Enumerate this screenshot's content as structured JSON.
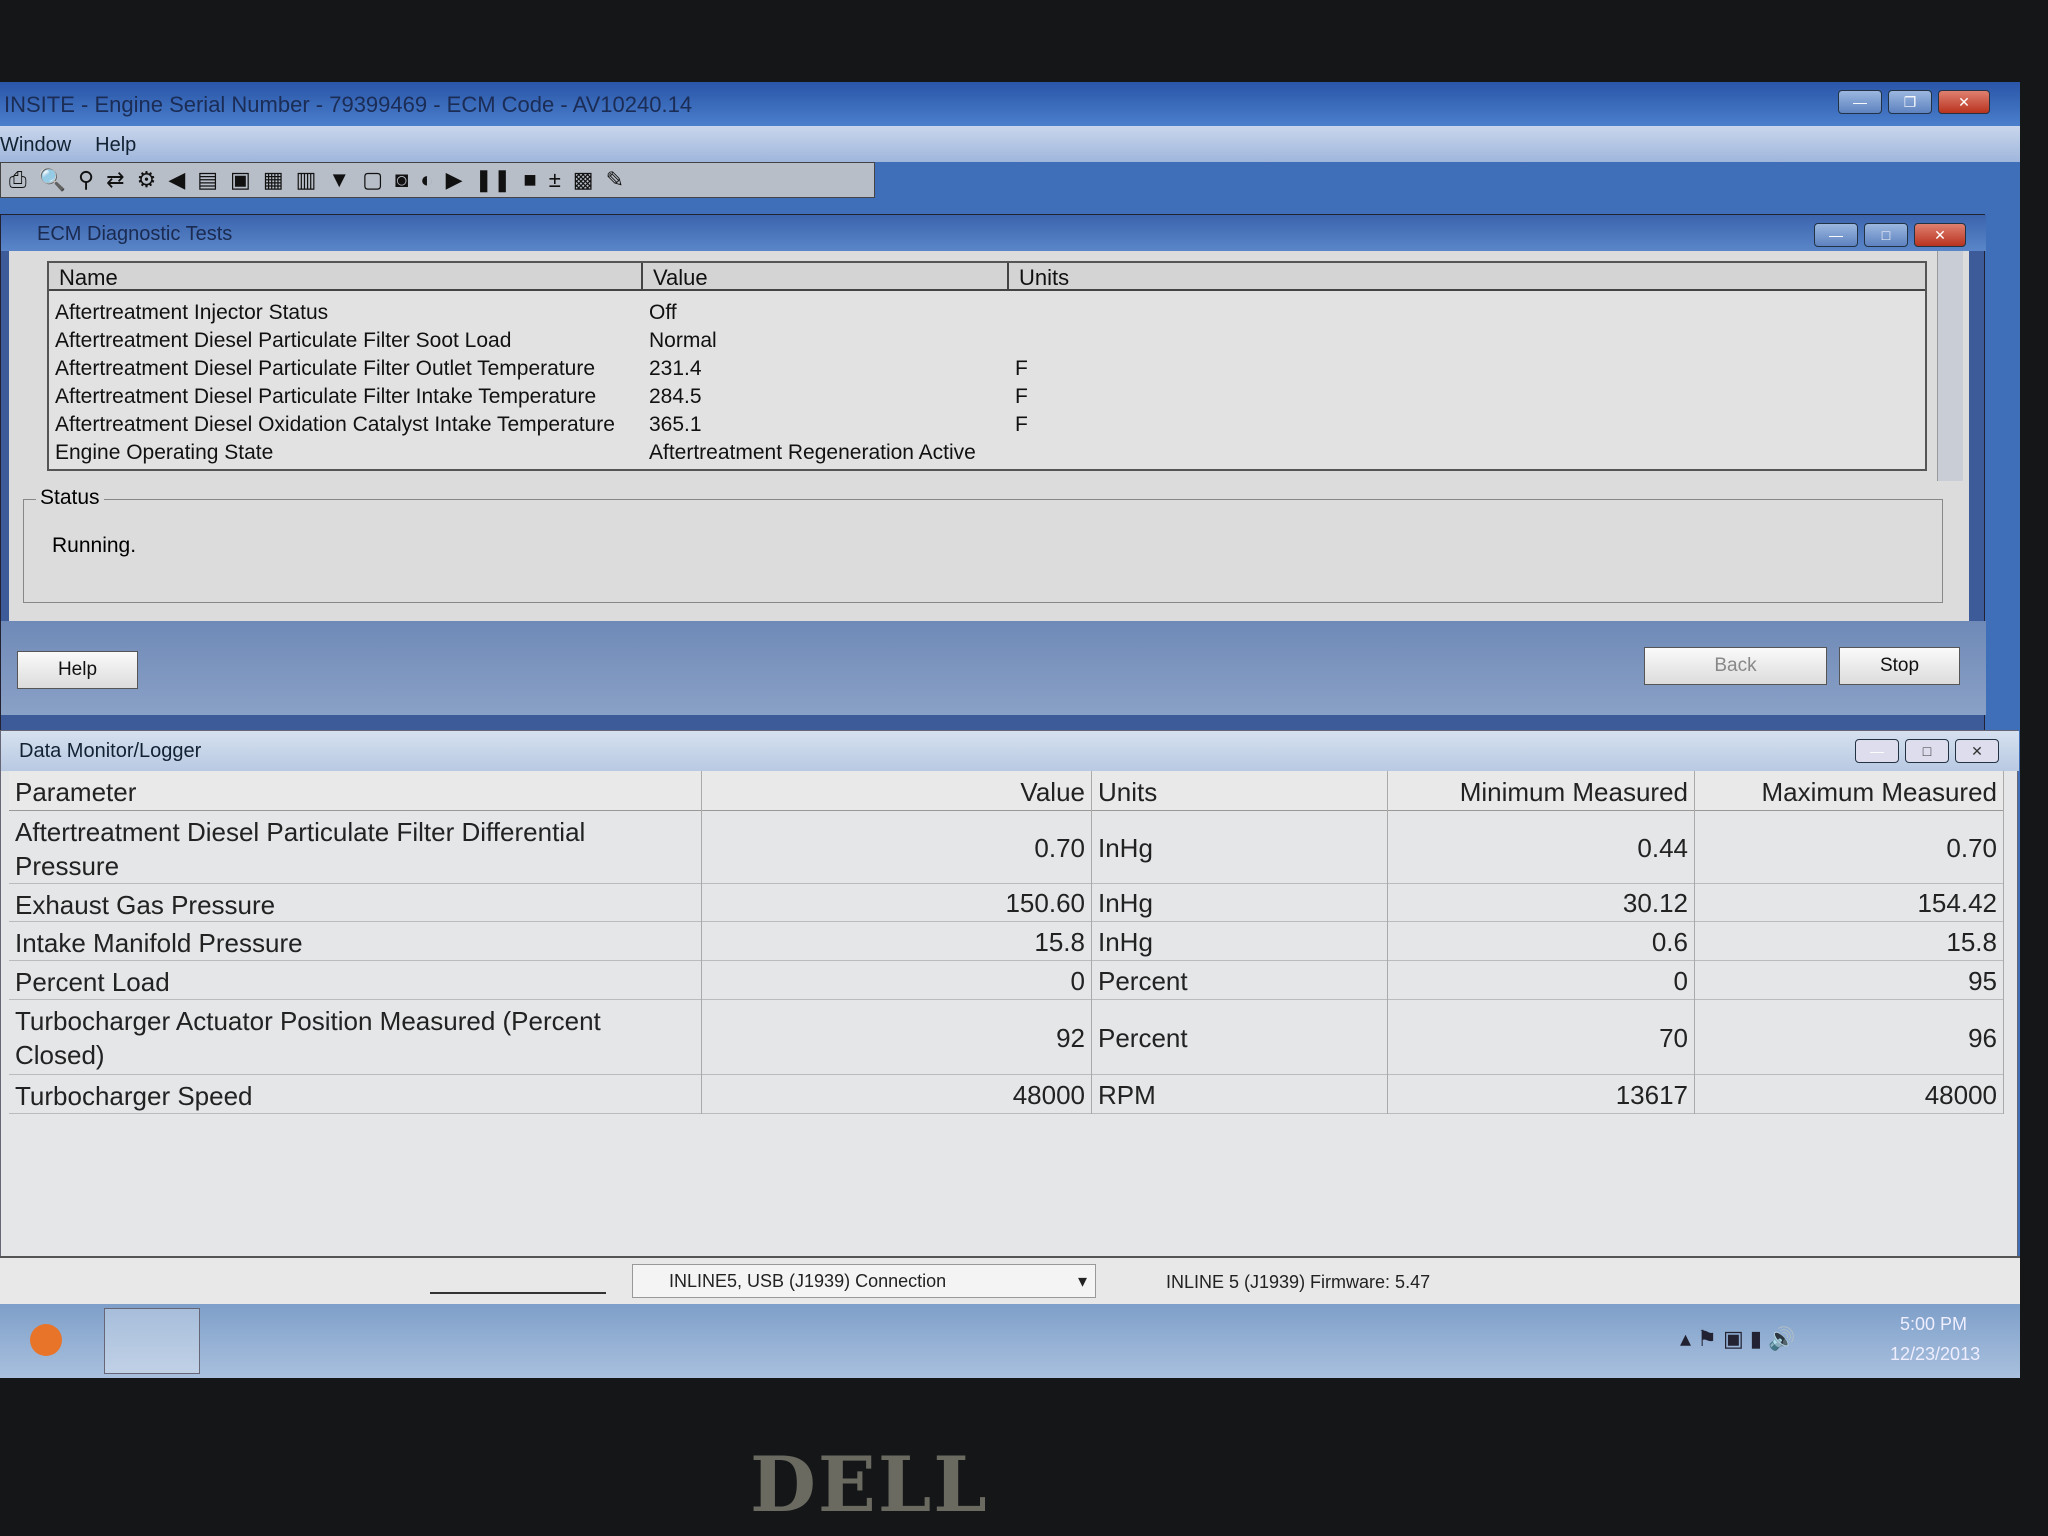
{
  "app": {
    "title": "INSITE - Engine Serial Number - 79399469 - ECM Code - AV10240.14",
    "menu": [
      "Window",
      "Help"
    ],
    "toolbar_icons": [
      "print-icon",
      "print-preview-icon",
      "find-icon",
      "import-icon",
      "connect-icon",
      "horn-icon",
      "ecm-icon",
      "printer-icon",
      "report-icon",
      "report-folder-icon",
      "filter-icon",
      "page-icon",
      "camera-icon",
      "record-icon",
      "play-icon",
      "pause-icon",
      "stop-icon",
      "add-icon",
      "calc-icon",
      "notes-icon"
    ]
  },
  "ecm": {
    "title": "ECM Diagnostic Tests",
    "columns": [
      "Name",
      "Value",
      "Units"
    ],
    "rows": [
      {
        "name": "Aftertreatment Injector Status",
        "value": "Off",
        "units": ""
      },
      {
        "name": "Aftertreatment Diesel Particulate Filter Soot Load",
        "value": "Normal",
        "units": ""
      },
      {
        "name": "Aftertreatment Diesel Particulate Filter Outlet Temperature",
        "value": "231.4",
        "units": "F"
      },
      {
        "name": "Aftertreatment Diesel Particulate Filter Intake Temperature",
        "value": "284.5",
        "units": "F"
      },
      {
        "name": "Aftertreatment Diesel Oxidation Catalyst Intake Temperature",
        "value": "365.1",
        "units": "F"
      },
      {
        "name": "Engine Operating State",
        "value": "Aftertreatment Regeneration Active",
        "units": ""
      }
    ],
    "status_label": "Status",
    "status_text": "Running.",
    "help": "Help",
    "back": "Back",
    "stop": "Stop"
  },
  "dm": {
    "title": "Data Monitor/Logger",
    "columns": [
      "Parameter",
      "Value",
      "Units",
      "Minimum Measured",
      "Maximum Measured"
    ],
    "rows": [
      {
        "p": "Aftertreatment Diesel Particulate Filter Differential Pressure",
        "v": "0.70",
        "u": "InHg",
        "min": "0.44",
        "max": "0.70"
      },
      {
        "p": "Exhaust Gas Pressure",
        "v": "150.60",
        "u": "InHg",
        "min": "30.12",
        "max": "154.42"
      },
      {
        "p": "Intake Manifold Pressure",
        "v": "15.8",
        "u": "InHg",
        "min": "0.6",
        "max": "15.8"
      },
      {
        "p": "Percent Load",
        "v": "0",
        "u": "Percent",
        "min": "0",
        "max": "95"
      },
      {
        "p": "Turbocharger Actuator Position Measured (Percent Closed)",
        "v": "92",
        "u": "Percent",
        "min": "70",
        "max": "96"
      },
      {
        "p": "Turbocharger Speed",
        "v": "48000",
        "u": "RPM",
        "min": "13617",
        "max": "48000"
      }
    ]
  },
  "statusbar": {
    "connection": "INLINE5, USB (J1939) Connection",
    "adapter": "INLINE 5 (J1939)  Firmware: 5.47"
  },
  "taskbar": {
    "time": "5:00 PM",
    "date": "12/23/2013"
  },
  "bezel": {
    "logo": "DELL"
  }
}
